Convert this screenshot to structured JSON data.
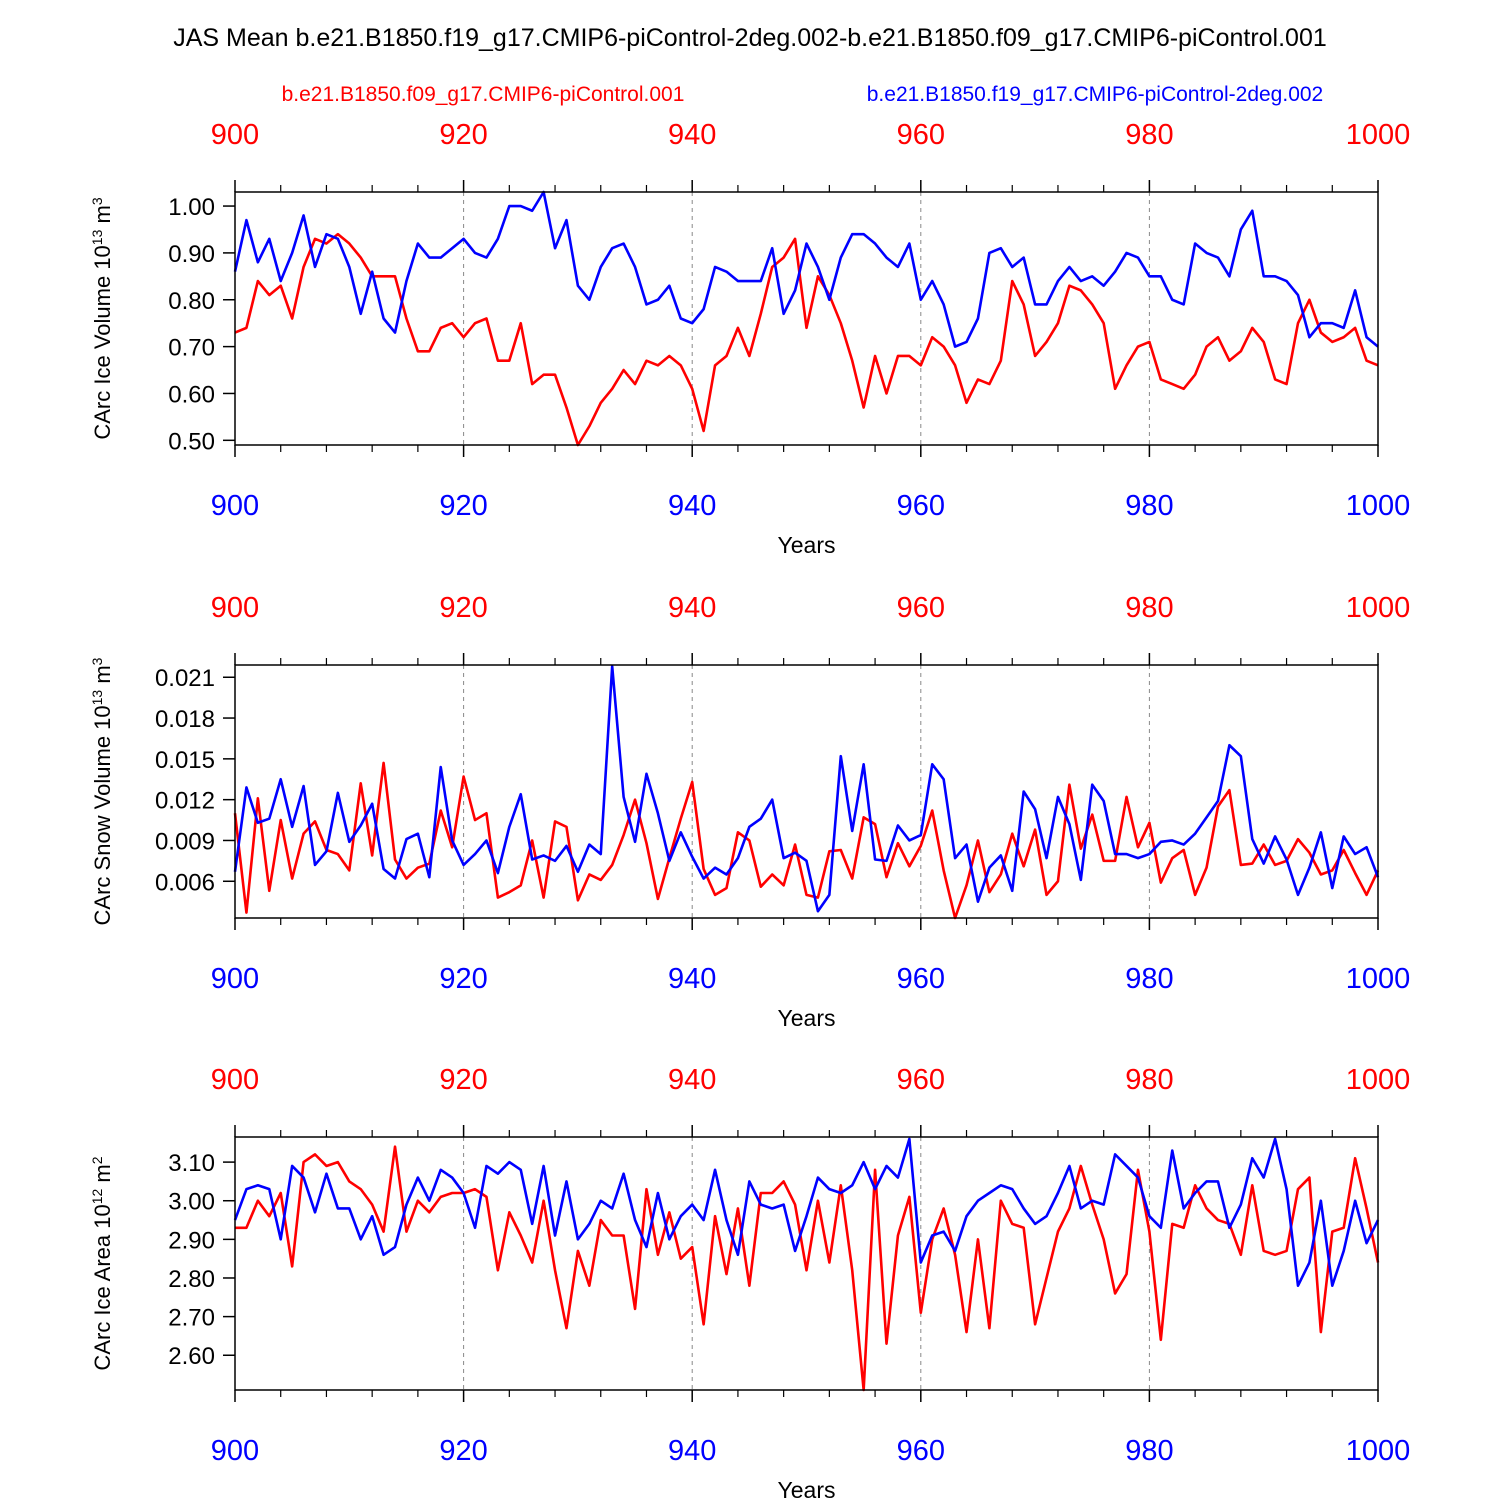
{
  "figure": {
    "title": "JAS Mean b.e21.B1850.f19_g17.CMIP6-piControl-2deg.002-b.e21.B1850.f09_g17.CMIP6-piControl.001",
    "legend_red": "b.e21.B1850.f09_g17.CMIP6-piControl.001",
    "legend_blue": "b.e21.B1850.f19_g17.CMIP6-piControl-2deg.002",
    "colors": {
      "red": "#ff0000",
      "blue": "#0000ff",
      "axis": "#000000",
      "grid": "#888888"
    }
  },
  "chart_data": [
    {
      "type": "line",
      "title": "",
      "xlabel": "Years",
      "ylabel_main": "CArc Ice Volume 10",
      "ylabel_sup": "13",
      "ylabel_unit": " m",
      "ylabel_unit_sup": "3",
      "xlim": [
        900,
        1000
      ],
      "ylim": [
        0.49,
        1.03
      ],
      "x_ticks": [
        900,
        920,
        940,
        960,
        980,
        1000
      ],
      "x_tick_labels": [
        "900",
        "920",
        "940",
        "960",
        "980",
        "1000"
      ],
      "y_ticks": [
        0.5,
        0.6,
        0.7,
        0.8,
        0.9,
        1.0
      ],
      "y_tick_labels": [
        "0.50",
        "0.60",
        "0.70",
        "0.80",
        "0.90",
        "1.00"
      ],
      "x_start": 900,
      "series": [
        {
          "name": "b.e21.B1850.f09_g17.CMIP6-piControl.001",
          "color": "red",
          "values": [
            0.73,
            0.74,
            0.84,
            0.81,
            0.83,
            0.76,
            0.87,
            0.93,
            0.92,
            0.94,
            0.92,
            0.89,
            0.85,
            0.85,
            0.85,
            0.76,
            0.69,
            0.69,
            0.74,
            0.75,
            0.72,
            0.75,
            0.76,
            0.67,
            0.67,
            0.75,
            0.62,
            0.64,
            0.64,
            0.57,
            0.49,
            0.53,
            0.58,
            0.61,
            0.65,
            0.62,
            0.67,
            0.66,
            0.68,
            0.66,
            0.61,
            0.52,
            0.66,
            0.68,
            0.74,
            0.68,
            0.77,
            0.87,
            0.89,
            0.93,
            0.74,
            0.85,
            0.81,
            0.75,
            0.67,
            0.57,
            0.68,
            0.6,
            0.68,
            0.68,
            0.66,
            0.72,
            0.7,
            0.66,
            0.58,
            0.63,
            0.62,
            0.67,
            0.84,
            0.79,
            0.68,
            0.71,
            0.75,
            0.83,
            0.82,
            0.79,
            0.75,
            0.61,
            0.66,
            0.7,
            0.71,
            0.63,
            0.62,
            0.61,
            0.64,
            0.7,
            0.72,
            0.67,
            0.69,
            0.74,
            0.71,
            0.63,
            0.62,
            0.75,
            0.8,
            0.73,
            0.71,
            0.72,
            0.74,
            0.67,
            0.66
          ]
        },
        {
          "name": "b.e21.B1850.f19_g17.CMIP6-piControl-2deg.002",
          "color": "blue",
          "values": [
            0.86,
            0.97,
            0.88,
            0.93,
            0.84,
            0.9,
            0.98,
            0.87,
            0.94,
            0.93,
            0.87,
            0.77,
            0.86,
            0.76,
            0.73,
            0.84,
            0.92,
            0.89,
            0.89,
            0.91,
            0.93,
            0.9,
            0.89,
            0.93,
            1.0,
            1.0,
            0.99,
            1.03,
            0.91,
            0.97,
            0.83,
            0.8,
            0.87,
            0.91,
            0.92,
            0.87,
            0.79,
            0.8,
            0.83,
            0.76,
            0.75,
            0.78,
            0.87,
            0.86,
            0.84,
            0.84,
            0.84,
            0.91,
            0.77,
            0.82,
            0.92,
            0.87,
            0.8,
            0.89,
            0.94,
            0.94,
            0.92,
            0.89,
            0.87,
            0.92,
            0.8,
            0.84,
            0.79,
            0.7,
            0.71,
            0.76,
            0.9,
            0.91,
            0.87,
            0.89,
            0.79,
            0.79,
            0.84,
            0.87,
            0.84,
            0.85,
            0.83,
            0.86,
            0.9,
            0.89,
            0.85,
            0.85,
            0.8,
            0.79,
            0.92,
            0.9,
            0.89,
            0.85,
            0.95,
            0.99,
            0.85,
            0.85,
            0.84,
            0.81,
            0.72,
            0.75,
            0.75,
            0.74,
            0.82,
            0.72,
            0.7
          ]
        }
      ]
    },
    {
      "type": "line",
      "title": "",
      "xlabel": "Years",
      "ylabel_main": "CArc Snow Volume 10",
      "ylabel_sup": "13",
      "ylabel_unit": " m",
      "ylabel_unit_sup": "3",
      "xlim": [
        900,
        1000
      ],
      "ylim": [
        0.0033,
        0.0219
      ],
      "x_ticks": [
        900,
        920,
        940,
        960,
        980,
        1000
      ],
      "x_tick_labels": [
        "900",
        "920",
        "940",
        "960",
        "980",
        "1000"
      ],
      "y_ticks": [
        0.006,
        0.009,
        0.012,
        0.015,
        0.018,
        0.021
      ],
      "y_tick_labels": [
        "0.006",
        "0.009",
        "0.012",
        "0.015",
        "0.018",
        "0.021"
      ],
      "x_start": 900,
      "series": [
        {
          "name": "b.e21.B1850.f09_g17.CMIP6-piControl.001",
          "color": "red",
          "values": [
            0.011,
            0.0037,
            0.0121,
            0.0053,
            0.0105,
            0.0062,
            0.0095,
            0.0104,
            0.0083,
            0.008,
            0.0068,
            0.0132,
            0.0079,
            0.0147,
            0.0076,
            0.0062,
            0.007,
            0.0073,
            0.0112,
            0.0085,
            0.0137,
            0.0105,
            0.011,
            0.0048,
            0.0052,
            0.0057,
            0.009,
            0.0048,
            0.0104,
            0.01,
            0.0046,
            0.0065,
            0.0061,
            0.0072,
            0.0094,
            0.012,
            0.0088,
            0.0047,
            0.0077,
            0.0106,
            0.0133,
            0.0069,
            0.005,
            0.0055,
            0.0096,
            0.009,
            0.0056,
            0.0065,
            0.0057,
            0.0087,
            0.005,
            0.0048,
            0.0082,
            0.0083,
            0.0062,
            0.0107,
            0.0102,
            0.0063,
            0.0088,
            0.0071,
            0.0086,
            0.0112,
            0.0068,
            0.0033,
            0.0057,
            0.009,
            0.0052,
            0.0065,
            0.0095,
            0.0071,
            0.0098,
            0.005,
            0.006,
            0.0131,
            0.0084,
            0.0109,
            0.0075,
            0.0075,
            0.0122,
            0.0085,
            0.0103,
            0.0059,
            0.0077,
            0.0083,
            0.005,
            0.007,
            0.0115,
            0.0127,
            0.0072,
            0.0073,
            0.0087,
            0.0072,
            0.0075,
            0.0091,
            0.0081,
            0.0065,
            0.0068,
            0.0083,
            0.0066,
            0.005,
            0.0068
          ]
        },
        {
          "name": "b.e21.B1850.f19_g17.CMIP6-piControl-2deg.002",
          "color": "blue",
          "values": [
            0.0067,
            0.0129,
            0.0103,
            0.0106,
            0.0135,
            0.01,
            0.013,
            0.0072,
            0.0082,
            0.0125,
            0.0089,
            0.0101,
            0.0117,
            0.0069,
            0.0062,
            0.0091,
            0.0095,
            0.0063,
            0.0144,
            0.009,
            0.0072,
            0.008,
            0.009,
            0.0066,
            0.01,
            0.0124,
            0.0076,
            0.0079,
            0.0075,
            0.0086,
            0.0067,
            0.0087,
            0.008,
            0.0218,
            0.0122,
            0.0089,
            0.0139,
            0.011,
            0.0075,
            0.0096,
            0.0078,
            0.0062,
            0.007,
            0.0065,
            0.0077,
            0.01,
            0.0106,
            0.012,
            0.0077,
            0.0081,
            0.0075,
            0.0038,
            0.005,
            0.0152,
            0.0097,
            0.0146,
            0.0076,
            0.0075,
            0.0101,
            0.009,
            0.0094,
            0.0146,
            0.0135,
            0.0077,
            0.0087,
            0.0045,
            0.007,
            0.0079,
            0.0053,
            0.0126,
            0.0113,
            0.0077,
            0.0122,
            0.0102,
            0.0061,
            0.0131,
            0.0119,
            0.008,
            0.008,
            0.0077,
            0.008,
            0.0089,
            0.009,
            0.0087,
            0.0095,
            0.0107,
            0.0119,
            0.016,
            0.0152,
            0.0091,
            0.0073,
            0.0093,
            0.0076,
            0.005,
            0.007,
            0.0096,
            0.0055,
            0.0093,
            0.008,
            0.0085,
            0.0063
          ]
        }
      ]
    },
    {
      "type": "line",
      "title": "",
      "xlabel": "Years",
      "ylabel_main": "CArc Ice Area 10",
      "ylabel_sup": "12",
      "ylabel_unit": " m",
      "ylabel_unit_sup": "2",
      "xlim": [
        900,
        1000
      ],
      "ylim": [
        2.51,
        3.165
      ],
      "x_ticks": [
        900,
        920,
        940,
        960,
        980,
        1000
      ],
      "x_tick_labels": [
        "900",
        "920",
        "940",
        "960",
        "980",
        "1000"
      ],
      "y_ticks": [
        2.6,
        2.7,
        2.8,
        2.9,
        3.0,
        3.1
      ],
      "y_tick_labels": [
        "2.60",
        "2.70",
        "2.80",
        "2.90",
        "3.00",
        "3.10"
      ],
      "x_start": 900,
      "series": [
        {
          "name": "b.e21.B1850.f09_g17.CMIP6-piControl.001",
          "color": "red",
          "values": [
            2.93,
            2.93,
            3.0,
            2.96,
            3.02,
            2.83,
            3.1,
            3.12,
            3.09,
            3.1,
            3.05,
            3.03,
            2.99,
            2.92,
            3.14,
            2.92,
            3.0,
            2.97,
            3.01,
            3.02,
            3.02,
            3.03,
            3.01,
            2.82,
            2.97,
            2.91,
            2.84,
            3.0,
            2.82,
            2.67,
            2.87,
            2.78,
            2.95,
            2.91,
            2.91,
            2.72,
            3.03,
            2.86,
            2.97,
            2.85,
            2.88,
            2.68,
            2.96,
            2.81,
            2.98,
            2.78,
            3.02,
            3.02,
            3.05,
            2.99,
            2.82,
            3.0,
            2.84,
            3.04,
            2.82,
            2.51,
            3.08,
            2.63,
            2.91,
            3.01,
            2.71,
            2.9,
            2.98,
            2.86,
            2.66,
            2.9,
            2.67,
            3.0,
            2.94,
            2.93,
            2.68,
            2.8,
            2.92,
            2.98,
            3.09,
            2.99,
            2.9,
            2.76,
            2.81,
            3.08,
            2.92,
            2.64,
            2.94,
            2.93,
            3.04,
            2.98,
            2.95,
            2.94,
            2.86,
            3.04,
            2.87,
            2.86,
            2.87,
            3.03,
            3.06,
            2.66,
            2.92,
            2.93,
            3.11,
            2.98,
            2.84
          ]
        },
        {
          "name": "b.e21.B1850.f19_g17.CMIP6-piControl-2deg.002",
          "color": "blue",
          "values": [
            2.95,
            3.03,
            3.04,
            3.03,
            2.9,
            3.09,
            3.06,
            2.97,
            3.07,
            2.98,
            2.98,
            2.9,
            2.96,
            2.86,
            2.88,
            2.99,
            3.06,
            3.0,
            3.08,
            3.06,
            3.02,
            2.93,
            3.09,
            3.07,
            3.1,
            3.08,
            2.94,
            3.09,
            2.91,
            3.05,
            2.9,
            2.94,
            3.0,
            2.98,
            3.07,
            2.95,
            2.88,
            3.02,
            2.9,
            2.96,
            2.99,
            2.95,
            3.08,
            2.95,
            2.86,
            3.05,
            2.99,
            2.98,
            2.99,
            2.87,
            2.96,
            3.06,
            3.03,
            3.02,
            3.04,
            3.1,
            3.03,
            3.09,
            3.06,
            3.16,
            2.84,
            2.91,
            2.92,
            2.87,
            2.96,
            3.0,
            3.02,
            3.04,
            3.03,
            2.98,
            2.94,
            2.96,
            3.02,
            3.09,
            2.98,
            3.0,
            2.99,
            3.12,
            3.09,
            3.06,
            2.96,
            2.93,
            3.13,
            2.98,
            3.02,
            3.05,
            3.05,
            2.93,
            2.99,
            3.11,
            3.06,
            3.16,
            3.03,
            2.78,
            2.84,
            3.0,
            2.78,
            2.87,
            3.0,
            2.89,
            2.95
          ]
        }
      ]
    }
  ]
}
